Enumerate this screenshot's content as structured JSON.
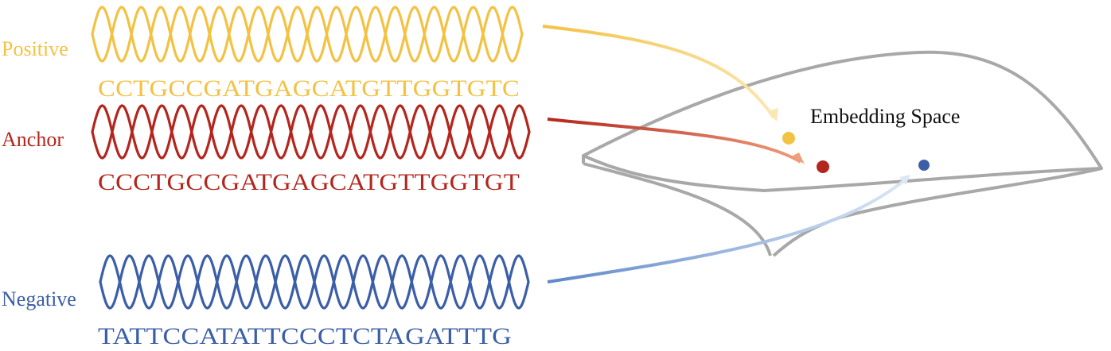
{
  "colors": {
    "positive": "#f3c244",
    "anchor": "#b3261e",
    "negative": "#3b5ea8",
    "surface": "#a8a8a8",
    "text_dark": "#111111"
  },
  "rows": [
    {
      "key": "positive",
      "label": "Positive",
      "sequence": "CCTGCCGATGAGCATGTTGGTGTC",
      "dna_icon": "dna-helix-icon"
    },
    {
      "key": "anchor",
      "label": "Anchor",
      "sequence": "CCCTGCCGATGAGCATGTTGGTGT",
      "dna_icon": "dna-helix-icon"
    },
    {
      "key": "negative",
      "label": "Negative",
      "sequence": "TATTCCATATTCCCTCTAGATTTG",
      "dna_icon": "dna-helix-icon"
    }
  ],
  "embedding_space": {
    "label": "Embedding Space"
  }
}
